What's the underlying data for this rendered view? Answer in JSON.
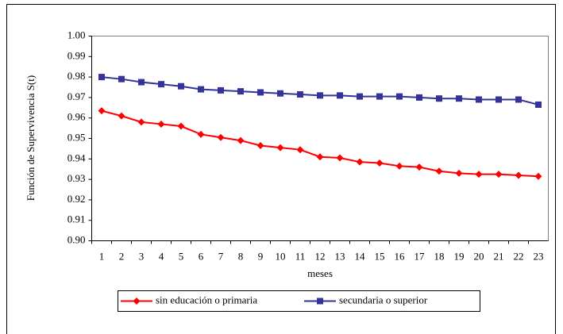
{
  "chart_data": {
    "type": "line",
    "y_label": "Función de Supervivencia S(t)",
    "x_label": "meses",
    "categories": [
      1,
      2,
      3,
      4,
      5,
      6,
      7,
      8,
      9,
      10,
      11,
      12,
      13,
      14,
      15,
      16,
      17,
      18,
      19,
      20,
      21,
      22,
      23
    ],
    "series": [
      {
        "name": "sin educación o primaria",
        "color": "#ff0000",
        "marker": "diamond",
        "values": [
          0.9635,
          0.961,
          0.958,
          0.957,
          0.956,
          0.952,
          0.9505,
          0.949,
          0.9465,
          0.9455,
          0.9445,
          0.941,
          0.9405,
          0.9385,
          0.938,
          0.9365,
          0.936,
          0.934,
          0.933,
          0.9325,
          0.9325,
          0.932,
          0.9315
        ]
      },
      {
        "name": "secundaria o superior",
        "color": "#333399",
        "marker": "square",
        "values": [
          0.98,
          0.979,
          0.9775,
          0.9765,
          0.9755,
          0.974,
          0.9735,
          0.973,
          0.9725,
          0.972,
          0.9715,
          0.971,
          0.971,
          0.9705,
          0.9705,
          0.9705,
          0.97,
          0.9695,
          0.9695,
          0.969,
          0.969,
          0.969,
          0.9665
        ]
      }
    ],
    "ylim": [
      0.9,
      1.0
    ],
    "yticks": [
      {
        "value": 0.9,
        "label": "0.90"
      },
      {
        "value": 0.91,
        "label": "0.91"
      },
      {
        "value": 0.92,
        "label": "0.92"
      },
      {
        "value": 0.93,
        "label": "0.93"
      },
      {
        "value": 0.94,
        "label": "0.94"
      },
      {
        "value": 0.95,
        "label": "0.95"
      },
      {
        "value": 0.96,
        "label": "0.96"
      },
      {
        "value": 0.97,
        "label": "0.97"
      },
      {
        "value": 0.98,
        "label": "0.98"
      },
      {
        "value": 0.99,
        "label": "0.99"
      },
      {
        "value": 1.0,
        "label": "1.00"
      }
    ],
    "grid": false,
    "legend": "bottom"
  }
}
